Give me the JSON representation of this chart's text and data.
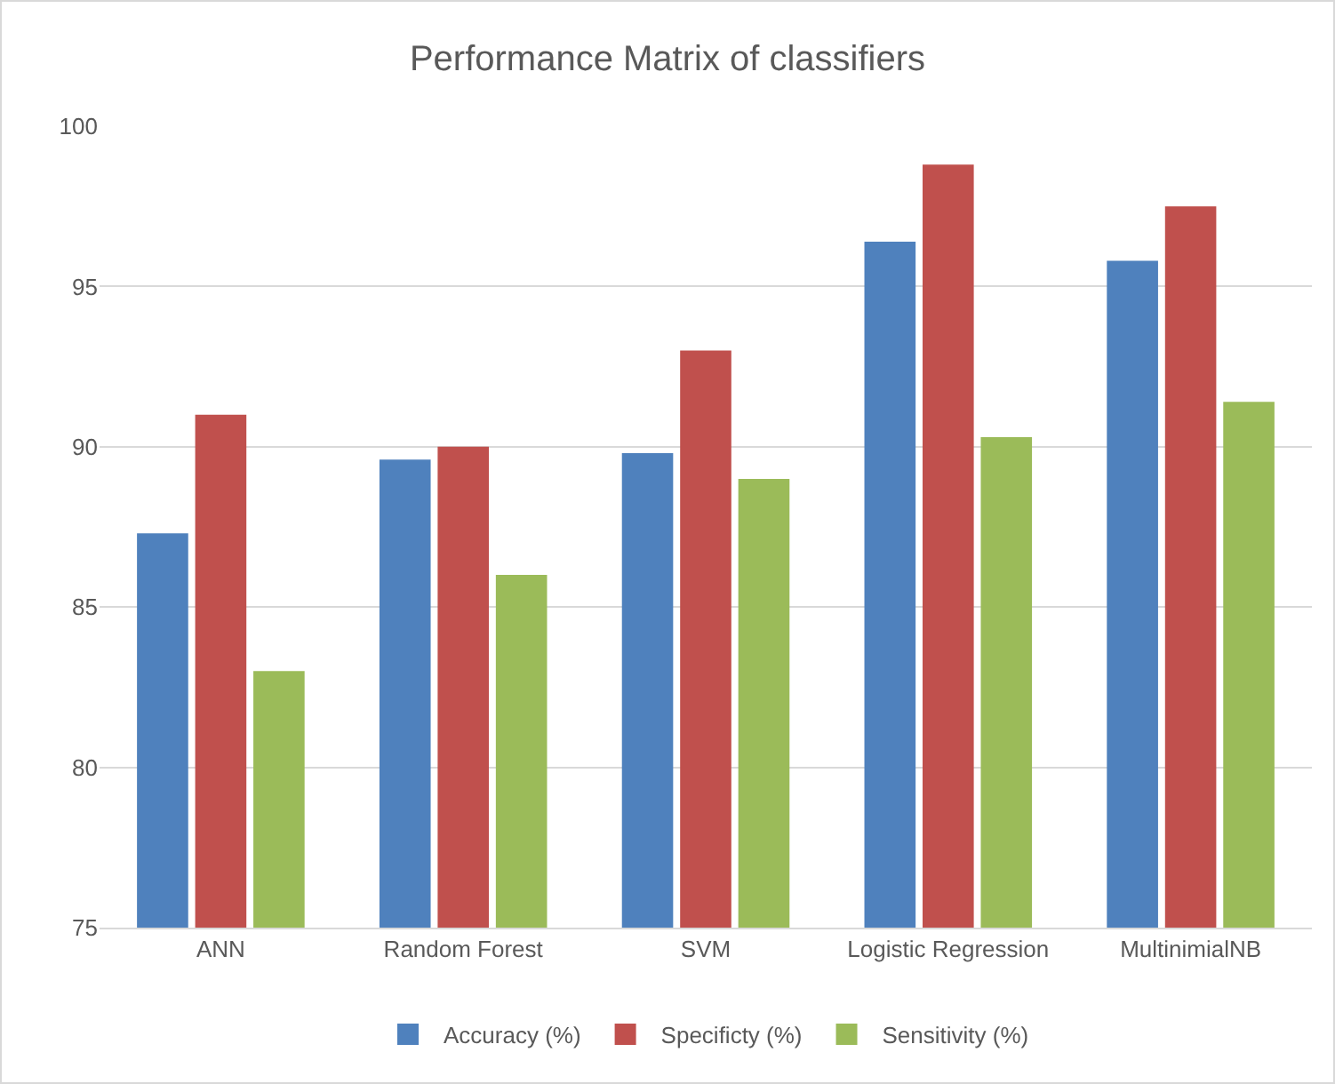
{
  "chart_data": {
    "type": "bar",
    "title": "Performance Matrix of classifiers",
    "categories": [
      "ANN",
      "Random Forest",
      "SVM",
      "Logistic Regression",
      "MultinimialNB"
    ],
    "series": [
      {
        "name": "Accuracy (%)",
        "color": "#4f81bd",
        "values": [
          87.3,
          89.6,
          89.8,
          96.4,
          95.8
        ]
      },
      {
        "name": "Specificty (%)",
        "color": "#c0504d",
        "values": [
          91.0,
          90.0,
          93.0,
          98.8,
          97.5
        ]
      },
      {
        "name": "Sensitivity (%)",
        "color": "#9bbb59",
        "values": [
          83.0,
          86.0,
          89.0,
          90.3,
          91.4
        ]
      }
    ],
    "ylim": [
      75,
      100
    ],
    "yticks": [
      75,
      80,
      85,
      90,
      95,
      100
    ],
    "grid": "y",
    "legend": "bottom"
  }
}
